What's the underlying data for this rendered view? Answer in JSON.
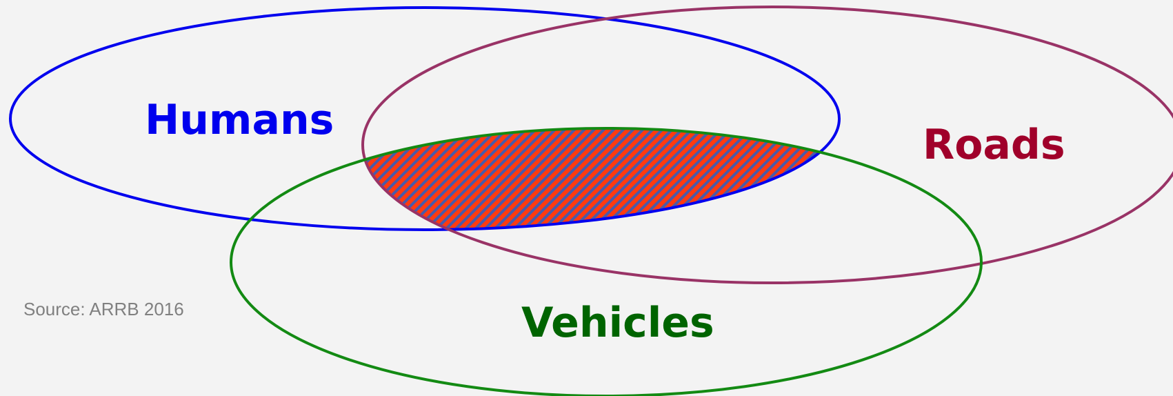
{
  "diagram": {
    "sets": [
      {
        "key": "humans",
        "label": "Humans",
        "color": "#0000ee"
      },
      {
        "key": "roads",
        "label": "Roads",
        "color": "#a0002a"
      },
      {
        "key": "vehicles",
        "label": "Vehicles",
        "color": "#006400"
      }
    ],
    "outline_colors": {
      "humans": "#0000ee",
      "roads": "#993366",
      "vehicles": "#138a13"
    },
    "intersection": {
      "fill_color": "#ff3a10",
      "stripe_color": "#4a5aa8"
    },
    "source_text": "Source: ARRB 2016",
    "source_color": "#808080",
    "background": "#f3f3f3"
  }
}
